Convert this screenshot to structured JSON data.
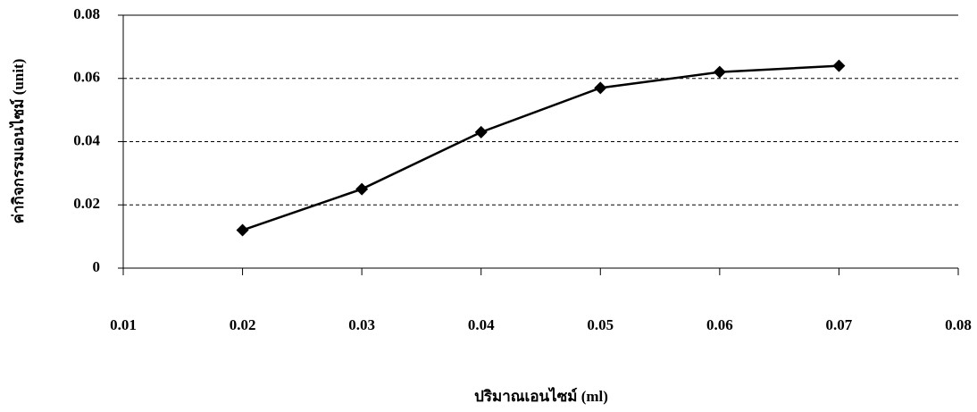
{
  "chart_data": {
    "type": "line",
    "x_label": "ปริมาณเอนไซม์ (ml)",
    "y_label": "ค่ากิจกรรมเอนไซม์ (unit)",
    "x": [
      0.02,
      0.03,
      0.04,
      0.05,
      0.06,
      0.07
    ],
    "values": [
      0.012,
      0.025,
      0.043,
      0.057,
      0.062,
      0.064
    ],
    "color": "#000000",
    "xlim": [
      0.01,
      0.08
    ],
    "xticks": [
      0.01,
      0.02,
      0.03,
      0.04,
      0.05,
      0.06,
      0.07,
      0.08
    ],
    "ylim": [
      0,
      0.08
    ],
    "yticks": [
      0,
      0.02,
      0.04,
      0.06,
      0.08
    ],
    "grid": true
  }
}
